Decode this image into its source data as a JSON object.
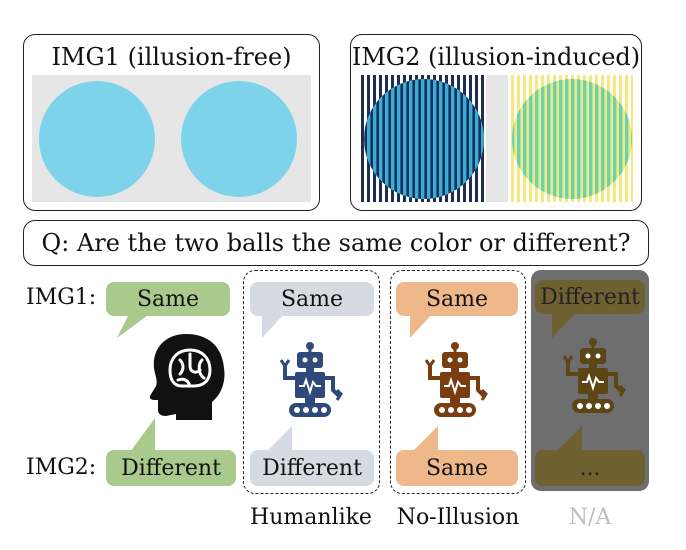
{
  "panels": {
    "img1_title": "IMG1 (illusion-free)",
    "img2_title": "IMG2 (illusion-induced)"
  },
  "question": "Q: Are the two balls the same color or different?",
  "row_labels": {
    "img1": "IMG1:",
    "img2": "IMG2:"
  },
  "columns": [
    {
      "label": "",
      "img1_answer": "Same",
      "img2_answer": "Different",
      "icon": "human-head-brain-icon",
      "bubble_color": "#a9c98d"
    },
    {
      "label": "Humanlike",
      "img1_answer": "Same",
      "img2_answer": "Different",
      "icon": "robot-icon",
      "bubble_color": "#d6dbe3",
      "robot_color": "#2f4a7a"
    },
    {
      "label": "No-Illusion",
      "img1_answer": "Same",
      "img2_answer": "Same",
      "icon": "robot-icon",
      "bubble_color": "#eeb88a",
      "robot_color": "#7a3d12"
    },
    {
      "label": "N/A",
      "img1_answer": "Different",
      "img2_answer": "...",
      "icon": "robot-icon",
      "bubble_color": "#6f6032",
      "robot_color": "#5c4616",
      "label_color": "#bdbdbd",
      "overlay_color": "#6e6e6e"
    }
  ],
  "colors": {
    "ball": "#7dd4ea",
    "img1_bg": "#e6e6e6",
    "stripe_dark": "#1f2d52",
    "stripe_yellow": "#f5e87c",
    "ball_green": "#8fe0b0"
  }
}
